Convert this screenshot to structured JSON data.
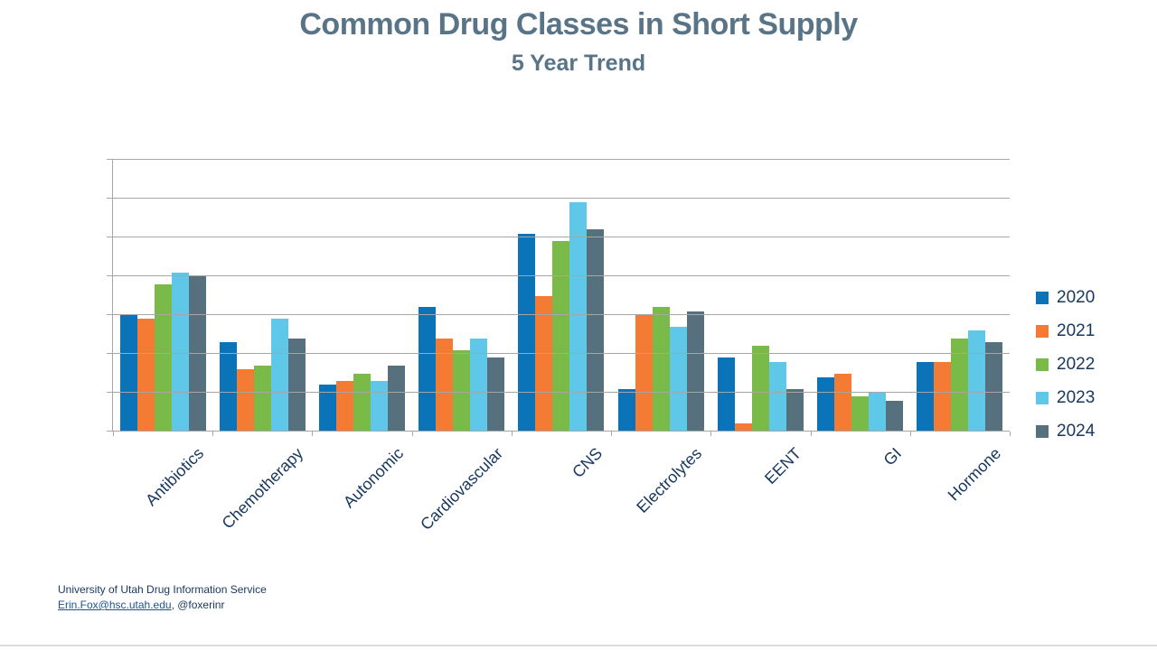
{
  "slide": {
    "title": "Common Drug Classes in Short Supply",
    "subtitle": "5 Year Trend",
    "footer_line1": "University of Utah Drug Information Service",
    "footer_email": "Erin.Fox@hsc.utah.edu",
    "footer_handle": ", @foxerinr"
  },
  "colors": {
    "title": "#587486",
    "axis_text": "#17375e",
    "gridline": "#a6a6a6",
    "link": "#1c5296",
    "bottom_rule": "#dcdcdc"
  },
  "chart_data": {
    "type": "bar",
    "title": "Common Drug Classes in Short Supply — 5 Year Trend",
    "categories": [
      "Antibiotics",
      "Chemotherapy",
      "Autonomic",
      "Cardiovascular",
      "CNS",
      "Electrolytes",
      "EENT",
      "GI",
      "Hormone"
    ],
    "series": [
      {
        "name": "2020",
        "color": "#0b73b8",
        "values": [
          30,
          23,
          12,
          32,
          51,
          11,
          19,
          14,
          18
        ]
      },
      {
        "name": "2021",
        "color": "#f47b33",
        "values": [
          29,
          16,
          13,
          24,
          35,
          30,
          2,
          15,
          18
        ]
      },
      {
        "name": "2022",
        "color": "#7aba49",
        "values": [
          38,
          17,
          15,
          21,
          49,
          32,
          22,
          9,
          24
        ]
      },
      {
        "name": "2023",
        "color": "#5fc8e8",
        "values": [
          41,
          29,
          13,
          24,
          59,
          27,
          18,
          10,
          26
        ]
      },
      {
        "name": "2024",
        "color": "#57707e",
        "values": [
          40,
          24,
          17,
          19,
          52,
          31,
          11,
          8,
          23
        ]
      }
    ],
    "xlabel": "",
    "ylabel": "",
    "ylim": [
      0,
      70
    ],
    "yticks": [
      0,
      10,
      20,
      30,
      40,
      50,
      60,
      70
    ],
    "grid": true,
    "legend_position": "right",
    "bar_orientation": "vertical"
  }
}
